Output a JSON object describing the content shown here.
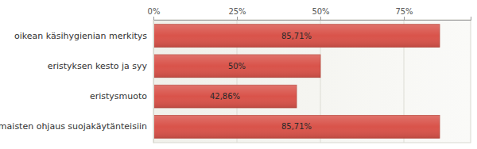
{
  "chart_data": {
    "type": "bar",
    "orientation": "horizontal",
    "categories": [
      "oikean käsihygienian merkitys",
      "eristyksen kesto ja syy",
      "eristysmuoto",
      "omaisten ohjaus suojakäytänteisiin"
    ],
    "values": [
      85.71,
      50,
      42.86,
      85.71
    ],
    "value_labels": [
      "85,71%",
      "50%",
      "42,86%",
      "85,71%"
    ],
    "data_labels": true,
    "color": "#d9534a",
    "xlim": [
      0,
      95
    ],
    "xticks": [
      {
        "value": 0,
        "label": "0%"
      },
      {
        "value": 25,
        "label": "25%"
      },
      {
        "value": 50,
        "label": "50%"
      },
      {
        "value": 75,
        "label": "75%"
      }
    ],
    "grid": true
  }
}
